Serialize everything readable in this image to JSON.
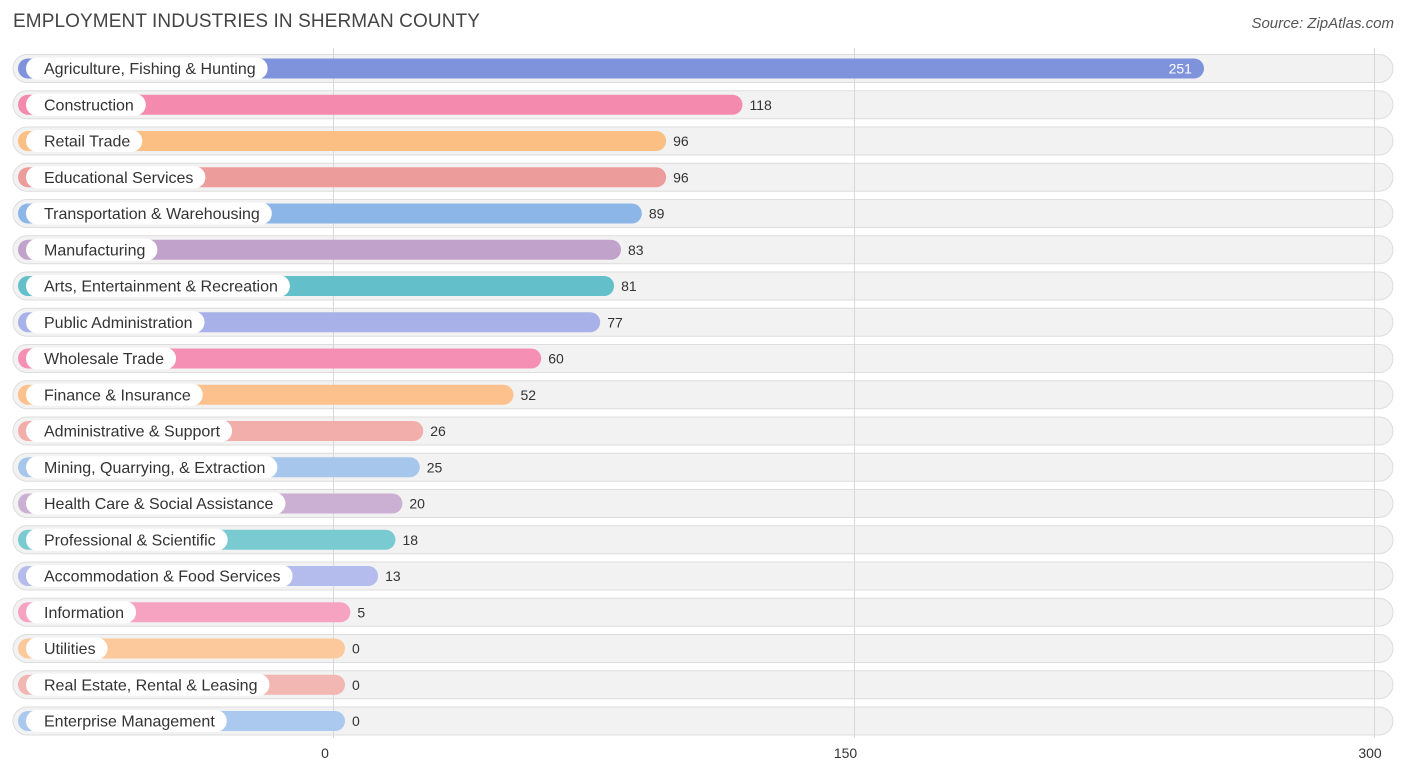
{
  "chart_data": {
    "type": "bar",
    "orientation": "horizontal",
    "title": "EMPLOYMENT INDUSTRIES IN SHERMAN COUNTY",
    "source": "Source: ZipAtlas.com",
    "xlim": [
      0,
      300
    ],
    "ticks": [
      0,
      150,
      300
    ],
    "categories": [
      "Agriculture, Fishing & Hunting",
      "Construction",
      "Retail Trade",
      "Educational Services",
      "Transportation & Warehousing",
      "Manufacturing",
      "Arts, Entertainment & Recreation",
      "Public Administration",
      "Wholesale Trade",
      "Finance & Insurance",
      "Administrative & Support",
      "Mining, Quarrying, & Extraction",
      "Health Care & Social Assistance",
      "Professional & Scientific",
      "Accommodation & Food Services",
      "Information",
      "Utilities",
      "Real Estate, Rental & Leasing",
      "Enterprise Management"
    ],
    "values": [
      251,
      118,
      96,
      96,
      89,
      83,
      81,
      77,
      60,
      52,
      26,
      25,
      20,
      18,
      13,
      5,
      0,
      0,
      0
    ],
    "colors": [
      "#7f93dc",
      "#f48aad",
      "#fbbf84",
      "#ec9c9a",
      "#8db6e8",
      "#c1a2cb",
      "#63bfca",
      "#a8b2e8",
      "#f590b4",
      "#fcc18d",
      "#f1aeaa",
      "#a7c6ec",
      "#cbb0d3",
      "#7acbd1",
      "#b3bcec",
      "#f5a3c1",
      "#fcc99d",
      "#f2b6b3",
      "#abc9ee"
    ]
  }
}
